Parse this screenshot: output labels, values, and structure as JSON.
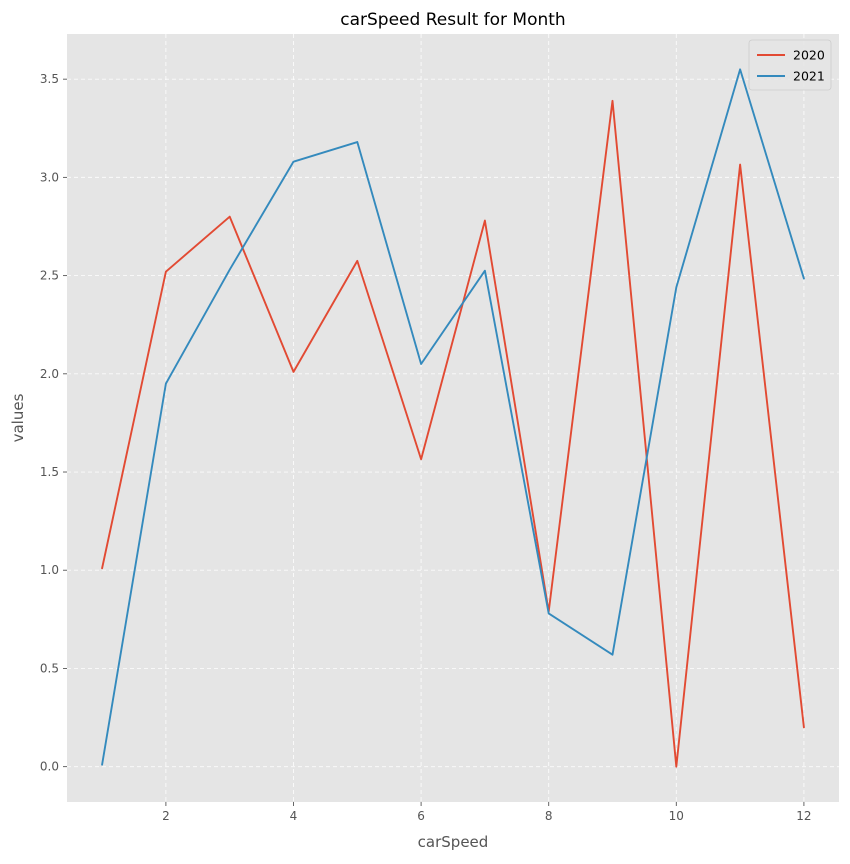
{
  "chart_data": {
    "type": "line",
    "title": "carSpeed Result for Month",
    "xlabel": "carSpeed",
    "ylabel": "values",
    "x": [
      1,
      2,
      3,
      4,
      5,
      6,
      7,
      8,
      9,
      10,
      11,
      12
    ],
    "xlim": [
      0.45,
      12.55
    ],
    "ylim": [
      -0.18,
      3.73
    ],
    "xticks": [
      2,
      4,
      6,
      8,
      10,
      12
    ],
    "yticks": [
      0.0,
      0.5,
      1.0,
      1.5,
      2.0,
      2.5,
      3.0,
      3.5
    ],
    "grid": true,
    "legend_position": "top-right",
    "series": [
      {
        "name": "2020",
        "color": "#E24A33",
        "values": [
          1.01,
          2.52,
          2.8,
          2.01,
          2.575,
          1.565,
          2.78,
          0.79,
          3.39,
          0.0,
          3.065,
          0.2
        ]
      },
      {
        "name": "2021",
        "color": "#348ABD",
        "values": [
          0.01,
          1.95,
          2.53,
          3.08,
          3.18,
          2.05,
          2.525,
          0.78,
          0.57,
          2.44,
          3.55,
          2.485
        ]
      }
    ],
    "colors": {
      "plot_background": "#E5E5E5",
      "grid": "#FFFFFF"
    }
  }
}
